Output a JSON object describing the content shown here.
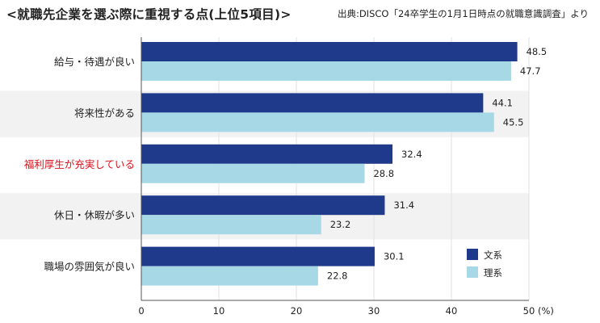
{
  "header": {
    "title": "<就職先企業を選ぶ際に重視する点(上位5項目)>",
    "source": "出典:DISCO「24卒学生の1月1日時点の就職意識調査」より"
  },
  "chart_data": {
    "type": "bar",
    "orientation": "horizontal",
    "categories": [
      "給与・待遇が良い",
      "将来性がある",
      "福利厚生が充実している",
      "休日・休暇が多い",
      "職場の雰囲気が良い"
    ],
    "highlighted_category": "福利厚生が充実している",
    "series": [
      {
        "name": "文系",
        "values": [
          48.5,
          44.1,
          32.4,
          31.4,
          30.1
        ],
        "color": "#1f3a8a"
      },
      {
        "name": "理系",
        "values": [
          47.7,
          45.5,
          28.8,
          23.2,
          22.8
        ],
        "color": "#a7d8e6"
      }
    ],
    "xlim": [
      0,
      50
    ],
    "xticks": [
      "0",
      "10",
      "20",
      "30",
      "40",
      "50"
    ],
    "xunit": "(%)",
    "grid": true,
    "legend_position": "bottom-right",
    "colors": {
      "highlight_label": "#d8101c",
      "grid": "#e2e2e2",
      "row_band": "#f2f2f2"
    }
  }
}
